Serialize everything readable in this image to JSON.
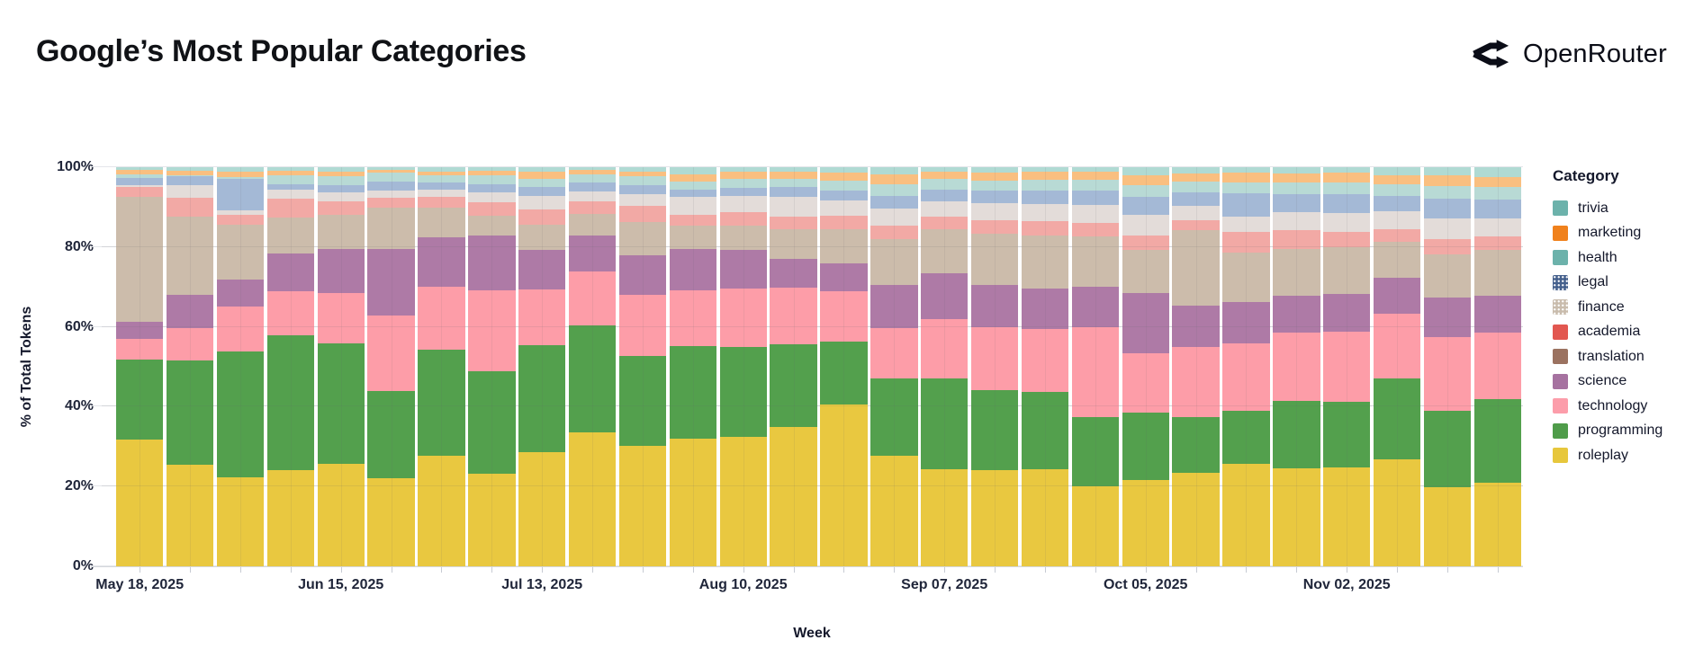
{
  "header": {
    "title": "Google’s Most Popular Categories",
    "brand": "OpenRouter"
  },
  "chart_data": {
    "type": "bar",
    "stacked": true,
    "normalized": "percent",
    "title": "Google’s Most Popular Categories",
    "xlabel": "Week",
    "ylabel": "% of Total Tokens",
    "ylim": [
      0,
      100
    ],
    "grid": true,
    "y_ticks": [
      "0%",
      "20%",
      "40%",
      "60%",
      "80%",
      "100%"
    ],
    "weeks": [
      "May 18",
      "May 25",
      "Jun 01",
      "Jun 08",
      "Jun 15",
      "Jun 22",
      "Jun 29",
      "Jul 06",
      "Jul 13",
      "Jul 20",
      "Jul 27",
      "Aug 03",
      "Aug 10",
      "Aug 17",
      "Aug 24",
      "Aug 31",
      "Sep 07",
      "Sep 14",
      "Sep 21",
      "Sep 28",
      "Oct 05",
      "Oct 12",
      "Oct 19",
      "Oct 26",
      "Nov 02",
      "Nov 09",
      "Nov 16",
      "Nov 23"
    ],
    "x_tick_labels": [
      {
        "week_index": 0,
        "text": "May 18, 2025"
      },
      {
        "week_index": 4,
        "text": "Jun 15, 2025"
      },
      {
        "week_index": 8,
        "text": "Jul 13, 2025"
      },
      {
        "week_index": 12,
        "text": "Aug 10, 2025"
      },
      {
        "week_index": 16,
        "text": "Sep 07, 2025"
      },
      {
        "week_index": 20,
        "text": "Oct 05, 2025"
      },
      {
        "week_index": 24,
        "text": "Nov 02, 2025"
      }
    ],
    "stack_order": "bottom_to_top",
    "series": [
      {
        "name": "roleplay",
        "color": "#e9c840",
        "pattern": false,
        "values": [
          31.7,
          25.5,
          22.4,
          24.0,
          25.7,
          22.0,
          27.6,
          23.3,
          28.7,
          33.5,
          30.2,
          32.0,
          32.4,
          35.0,
          40.5,
          27.6,
          24.3,
          24.0,
          24.3,
          20.0,
          21.7,
          23.5,
          25.7,
          24.5,
          24.8,
          26.8,
          19.8,
          21.0
        ]
      },
      {
        "name": "programming",
        "color": "#53a04d",
        "pattern": false,
        "values": [
          20.1,
          26.0,
          31.4,
          33.8,
          30.1,
          22.0,
          26.7,
          25.5,
          26.8,
          26.9,
          22.5,
          23.2,
          22.5,
          20.6,
          15.9,
          19.5,
          22.8,
          20.2,
          19.5,
          17.5,
          16.9,
          13.8,
          13.2,
          16.9,
          16.4,
          20.3,
          19.2,
          21.0
        ]
      },
      {
        "name": "technology",
        "color": "#fd9da8",
        "pattern": false,
        "values": [
          5.3,
          8.2,
          11.4,
          11.2,
          12.7,
          18.9,
          15.7,
          20.3,
          13.8,
          13.4,
          15.4,
          14.0,
          14.6,
          14.2,
          12.5,
          12.6,
          14.8,
          15.8,
          15.6,
          22.5,
          14.8,
          17.6,
          17.0,
          17.2,
          17.5,
          16.3,
          18.4,
          16.6
        ]
      },
      {
        "name": "science",
        "color": "#ae7aa6",
        "pattern": false,
        "values": [
          4.2,
          8.4,
          6.6,
          9.5,
          11.1,
          16.6,
          12.5,
          13.7,
          10.0,
          9.1,
          9.8,
          10.2,
          9.7,
          7.2,
          7.1,
          10.7,
          11.6,
          10.4,
          10.3,
          10.0,
          15.1,
          10.4,
          10.3,
          9.2,
          9.6,
          8.8,
          10.0,
          9.2
        ]
      },
      {
        "name": "translation",
        "color": "#ccbcab",
        "pattern": false,
        "values": [
          31.2,
          19.5,
          13.7,
          8.8,
          8.5,
          10.4,
          7.4,
          5.1,
          6.4,
          5.5,
          8.3,
          5.9,
          6.1,
          7.5,
          8.5,
          11.6,
          10.9,
          12.9,
          13.2,
          12.7,
          10.7,
          19.0,
          12.5,
          11.8,
          11.6,
          9.1,
          10.7,
          11.4
        ]
      },
      {
        "name": "academia",
        "color": "#f2a9a5",
        "pattern": false,
        "values": [
          2.6,
          4.8,
          2.6,
          4.8,
          3.3,
          2.5,
          2.6,
          3.3,
          3.8,
          3.0,
          4.1,
          2.8,
          3.4,
          3.2,
          3.3,
          3.4,
          3.2,
          3.4,
          3.5,
          3.4,
          3.8,
          2.5,
          5.0,
          4.7,
          3.9,
          3.2,
          4.0,
          3.4
        ]
      },
      {
        "name": "finance",
        "color": "#e3dcd9",
        "pattern": true,
        "values": [
          0.4,
          3.1,
          1.2,
          2.2,
          2.2,
          1.8,
          1.8,
          2.6,
          3.3,
          2.6,
          3.0,
          4.4,
          4.2,
          4.9,
          3.8,
          4.3,
          3.8,
          4.2,
          4.4,
          4.5,
          5.0,
          3.5,
          4.0,
          4.5,
          4.8,
          4.4,
          5.0,
          4.6
        ]
      },
      {
        "name": "legal",
        "color": "#a4b9d6",
        "pattern": true,
        "values": [
          1.9,
          2.2,
          7.8,
          1.5,
          2.0,
          2.2,
          1.8,
          2.0,
          2.2,
          2.2,
          2.2,
          1.8,
          2.0,
          2.4,
          2.6,
          3.2,
          3.0,
          3.2,
          3.3,
          3.5,
          4.5,
          3.5,
          5.9,
          4.5,
          4.6,
          4.0,
          5.0,
          4.8
        ]
      },
      {
        "name": "health",
        "color": "#b8dad5",
        "pattern": false,
        "values": [
          0.9,
          0.3,
          0.5,
          2.2,
          2.2,
          2.2,
          1.8,
          2.2,
          2.2,
          2.1,
          2.2,
          2.2,
          2.2,
          2.2,
          2.4,
          2.8,
          2.6,
          2.6,
          2.7,
          2.7,
          3.0,
          2.5,
          2.6,
          2.8,
          3.0,
          2.8,
          3.2,
          3.0
        ]
      },
      {
        "name": "marketing",
        "color": "#f9bf80",
        "pattern": false,
        "values": [
          1.1,
          1.2,
          1.2,
          1.2,
          1.2,
          0.7,
          1.1,
          1.2,
          1.7,
          1.0,
          1.2,
          1.8,
          1.7,
          1.8,
          2.0,
          2.5,
          1.8,
          2.0,
          2.0,
          2.0,
          2.5,
          2.2,
          2.4,
          2.4,
          2.5,
          2.3,
          2.8,
          2.6
        ]
      },
      {
        "name": "trivia",
        "color": "#b0dad3",
        "pattern": true,
        "values": [
          0.6,
          0.8,
          1.2,
          0.8,
          1.0,
          0.7,
          1.0,
          0.8,
          1.1,
          0.7,
          1.1,
          1.7,
          1.2,
          1.0,
          1.4,
          1.8,
          1.2,
          1.3,
          1.2,
          1.2,
          2.0,
          1.5,
          1.4,
          1.5,
          1.3,
          2.0,
          1.9,
          2.4
        ]
      }
    ]
  },
  "legend": {
    "title": "Category",
    "items": [
      {
        "label": "trivia",
        "color": "#6cb2ab",
        "pattern": false
      },
      {
        "label": "marketing",
        "color": "#f0811c",
        "pattern": false
      },
      {
        "label": "health",
        "color": "#6cb2ab",
        "pattern": false
      },
      {
        "label": "legal",
        "color": "#46618d",
        "pattern": true
      },
      {
        "label": "finance",
        "color": "#c9bcad",
        "pattern": true
      },
      {
        "label": "academia",
        "color": "#e25750",
        "pattern": false
      },
      {
        "label": "translation",
        "color": "#9b7260",
        "pattern": false
      },
      {
        "label": "science",
        "color": "#a672a0",
        "pattern": false
      },
      {
        "label": "technology",
        "color": "#fc9daa",
        "pattern": false
      },
      {
        "label": "programming",
        "color": "#4f9c4a",
        "pattern": false
      },
      {
        "label": "roleplay",
        "color": "#e7c73c",
        "pattern": false
      }
    ]
  }
}
